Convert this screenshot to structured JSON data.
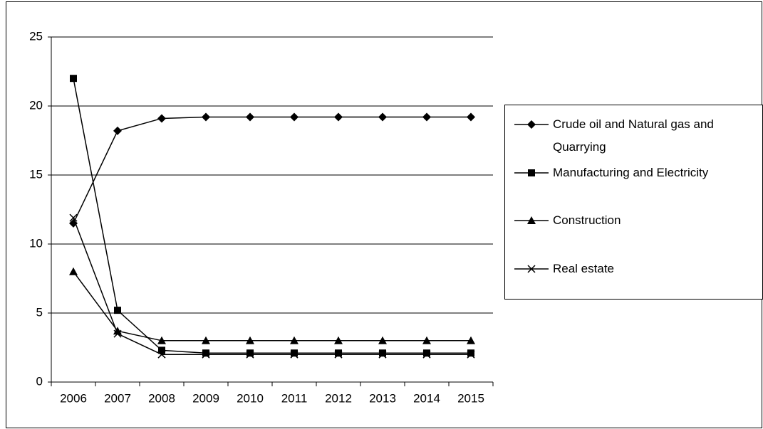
{
  "chart_data": {
    "type": "line",
    "categories": [
      "2006",
      "2007",
      "2008",
      "2009",
      "2010",
      "2011",
      "2012",
      "2013",
      "2014",
      "2015"
    ],
    "series": [
      {
        "name": "Crude oil and Natural gas and Quarrying",
        "color": "#000000",
        "marker": "diamond",
        "values": [
          11.5,
          18.2,
          19.1,
          19.2,
          19.2,
          19.2,
          19.2,
          19.2,
          19.2,
          19.2
        ]
      },
      {
        "name": "Manufacturing and Electricity",
        "color": "#000000",
        "marker": "square",
        "values": [
          22,
          5.2,
          2.3,
          2.1,
          2.1,
          2.1,
          2.1,
          2.1,
          2.1,
          2.1
        ]
      },
      {
        "name": "Construction",
        "color": "#000000",
        "marker": "triangle",
        "values": [
          8,
          3.7,
          3,
          3,
          3,
          3,
          3,
          3,
          3,
          3
        ]
      },
      {
        "name": "Real estate",
        "color": "#000000",
        "marker": "x",
        "values": [
          11.9,
          3.5,
          2,
          2,
          2,
          2,
          2,
          2,
          2,
          2
        ]
      }
    ],
    "ylim": [
      0,
      25
    ],
    "yticks": [
      0,
      5,
      10,
      15,
      20,
      25
    ],
    "grid": true
  }
}
